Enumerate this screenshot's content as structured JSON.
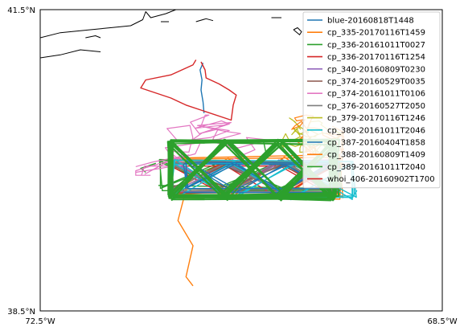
{
  "chart_data": {
    "type": "line",
    "kind": "trajectory map",
    "xlim": [
      -72.5,
      -68.5
    ],
    "ylim": [
      38.5,
      41.5
    ],
    "tick_labels": {
      "x": [
        "72.5°W",
        "68.5°W"
      ],
      "y": [
        "41.5°N",
        "38.5°N"
      ]
    },
    "grid": false,
    "legend_position": "top-right",
    "series": [
      {
        "name": "blue-20160818T1448",
        "color": "#1f77b4",
        "shape": "vertical",
        "path": [
          [
            -70.88,
            40.97
          ],
          [
            -70.91,
            40.9
          ],
          [
            -70.89,
            40.8
          ],
          [
            -70.9,
            40.7
          ],
          [
            -70.88,
            40.58
          ],
          [
            -70.87,
            40.47
          ]
        ]
      },
      {
        "name": "cp_335-20170116T1459",
        "color": "#ff7f0e",
        "shape": "survey",
        "box": [
          -71.2,
          39.64,
          -69.5,
          40.03
        ],
        "tail": [
          [
            -71.02,
            39.82
          ],
          [
            -71.13,
            39.4
          ],
          [
            -70.98,
            39.15
          ],
          [
            -71.05,
            38.84
          ],
          [
            -70.98,
            38.75
          ]
        ]
      },
      {
        "name": "cp_336-20161011T0027",
        "color": "#2ca02c",
        "shape": "survey",
        "box": [
          -71.3,
          39.72,
          -69.52,
          39.98
        ],
        "tail": [
          [
            -71.35,
            39.97
          ],
          [
            -71.5,
            39.92
          ],
          [
            -71.45,
            39.88
          ]
        ]
      },
      {
        "name": "cp_336-20170116T1254",
        "color": "#d62728",
        "shape": "survey",
        "box": [
          -71.2,
          39.66,
          -69.58,
          39.97
        ],
        "tail": []
      },
      {
        "name": "cp_340-20160809T0230",
        "color": "#9467bd",
        "shape": "survey",
        "box": [
          -71.2,
          39.68,
          -69.55,
          39.98
        ],
        "tail": []
      },
      {
        "name": "cp_374-20160529T0035",
        "color": "#8c564b",
        "shape": "survey",
        "box": [
          -71.2,
          39.7,
          -69.55,
          39.97
        ],
        "tail": []
      },
      {
        "name": "cp_374-20161011T0106",
        "color": "#e377c2",
        "shape": "cluster",
        "box": [
          -71.55,
          39.85,
          -69.48,
          40.45
        ],
        "tail": [
          [
            -71.02,
            39.97
          ],
          [
            -71.3,
            39.92
          ],
          [
            -71.55,
            39.88
          ]
        ]
      },
      {
        "name": "cp_376-20160527T2050",
        "color": "#7f7f7f",
        "shape": "survey",
        "box": [
          -71.18,
          39.7,
          -69.55,
          39.98
        ],
        "tail": []
      },
      {
        "name": "cp_379-20170116T1246",
        "color": "#bcbd22",
        "shape": "cluster",
        "box": [
          -70.1,
          40.08,
          -69.5,
          40.45
        ],
        "tail": []
      },
      {
        "name": "cp_380-20161011T2046",
        "color": "#17becf",
        "shape": "survey",
        "box": [
          -71.18,
          39.63,
          -69.38,
          39.98
        ],
        "tail": [
          [
            -69.35,
            39.7
          ],
          [
            -69.4,
            39.62
          ]
        ]
      },
      {
        "name": "cp_387-20160404T1858",
        "color": "#1f77b4",
        "shape": "survey",
        "box": [
          -71.05,
          39.7,
          -69.6,
          39.98
        ],
        "tail": []
      },
      {
        "name": "cp_388-20160809T1409",
        "color": "#ff7f0e",
        "shape": "cluster",
        "box": [
          -70.15,
          40.05,
          -69.48,
          40.45
        ],
        "tail": []
      },
      {
        "name": "cp_389-20161011T2040",
        "color": "#2ca02c",
        "shape": "survey",
        "box": [
          -71.2,
          39.63,
          -69.6,
          40.18
        ],
        "tail": [
          [
            -71.2,
            40.18
          ],
          [
            -70.28,
            40.2
          ],
          [
            -70.25,
            40.05
          ]
        ]
      },
      {
        "name": "whoi_406-20160902T1700",
        "color": "#d62728",
        "shape": "loop",
        "path": [
          [
            -70.9,
            40.98
          ],
          [
            -70.86,
            40.9
          ],
          [
            -70.85,
            40.82
          ],
          [
            -70.72,
            40.76
          ],
          [
            -70.62,
            40.7
          ],
          [
            -70.55,
            40.65
          ],
          [
            -70.58,
            40.55
          ],
          [
            -70.6,
            40.4
          ],
          [
            -71.05,
            40.55
          ],
          [
            -71.2,
            40.62
          ],
          [
            -71.5,
            40.72
          ],
          [
            -71.45,
            40.8
          ],
          [
            -71.2,
            40.85
          ],
          [
            -70.98,
            40.95
          ],
          [
            -70.95,
            41.0
          ]
        ]
      }
    ]
  },
  "coastline": [
    [
      [
        -72.5,
        41.22
      ],
      [
        -72.3,
        41.27
      ],
      [
        -72.0,
        41.3
      ],
      [
        -71.8,
        41.32
      ],
      [
        -71.6,
        41.34
      ],
      [
        -71.48,
        41.4
      ],
      [
        -71.45,
        41.48
      ],
      [
        -71.4,
        41.42
      ],
      [
        -71.25,
        41.46
      ],
      [
        -71.15,
        41.5
      ]
    ],
    [
      [
        -72.5,
        41.02
      ],
      [
        -72.3,
        41.05
      ],
      [
        -72.1,
        41.1
      ],
      [
        -71.9,
        41.08
      ]
    ],
    [
      [
        -72.05,
        41.22
      ],
      [
        -71.95,
        41.24
      ],
      [
        -71.9,
        41.22
      ]
    ],
    [
      [
        -71.3,
        41.38
      ],
      [
        -71.22,
        41.38
      ]
    ],
    [
      [
        -70.95,
        41.38
      ],
      [
        -70.85,
        41.41
      ],
      [
        -70.78,
        41.39
      ]
    ],
    [
      [
        -69.98,
        41.3
      ],
      [
        -69.94,
        41.32
      ],
      [
        -69.9,
        41.28
      ],
      [
        -69.92,
        41.25
      ],
      [
        -69.98,
        41.3
      ]
    ],
    [
      [
        -70.2,
        41.42
      ],
      [
        -70.1,
        41.42
      ]
    ]
  ]
}
